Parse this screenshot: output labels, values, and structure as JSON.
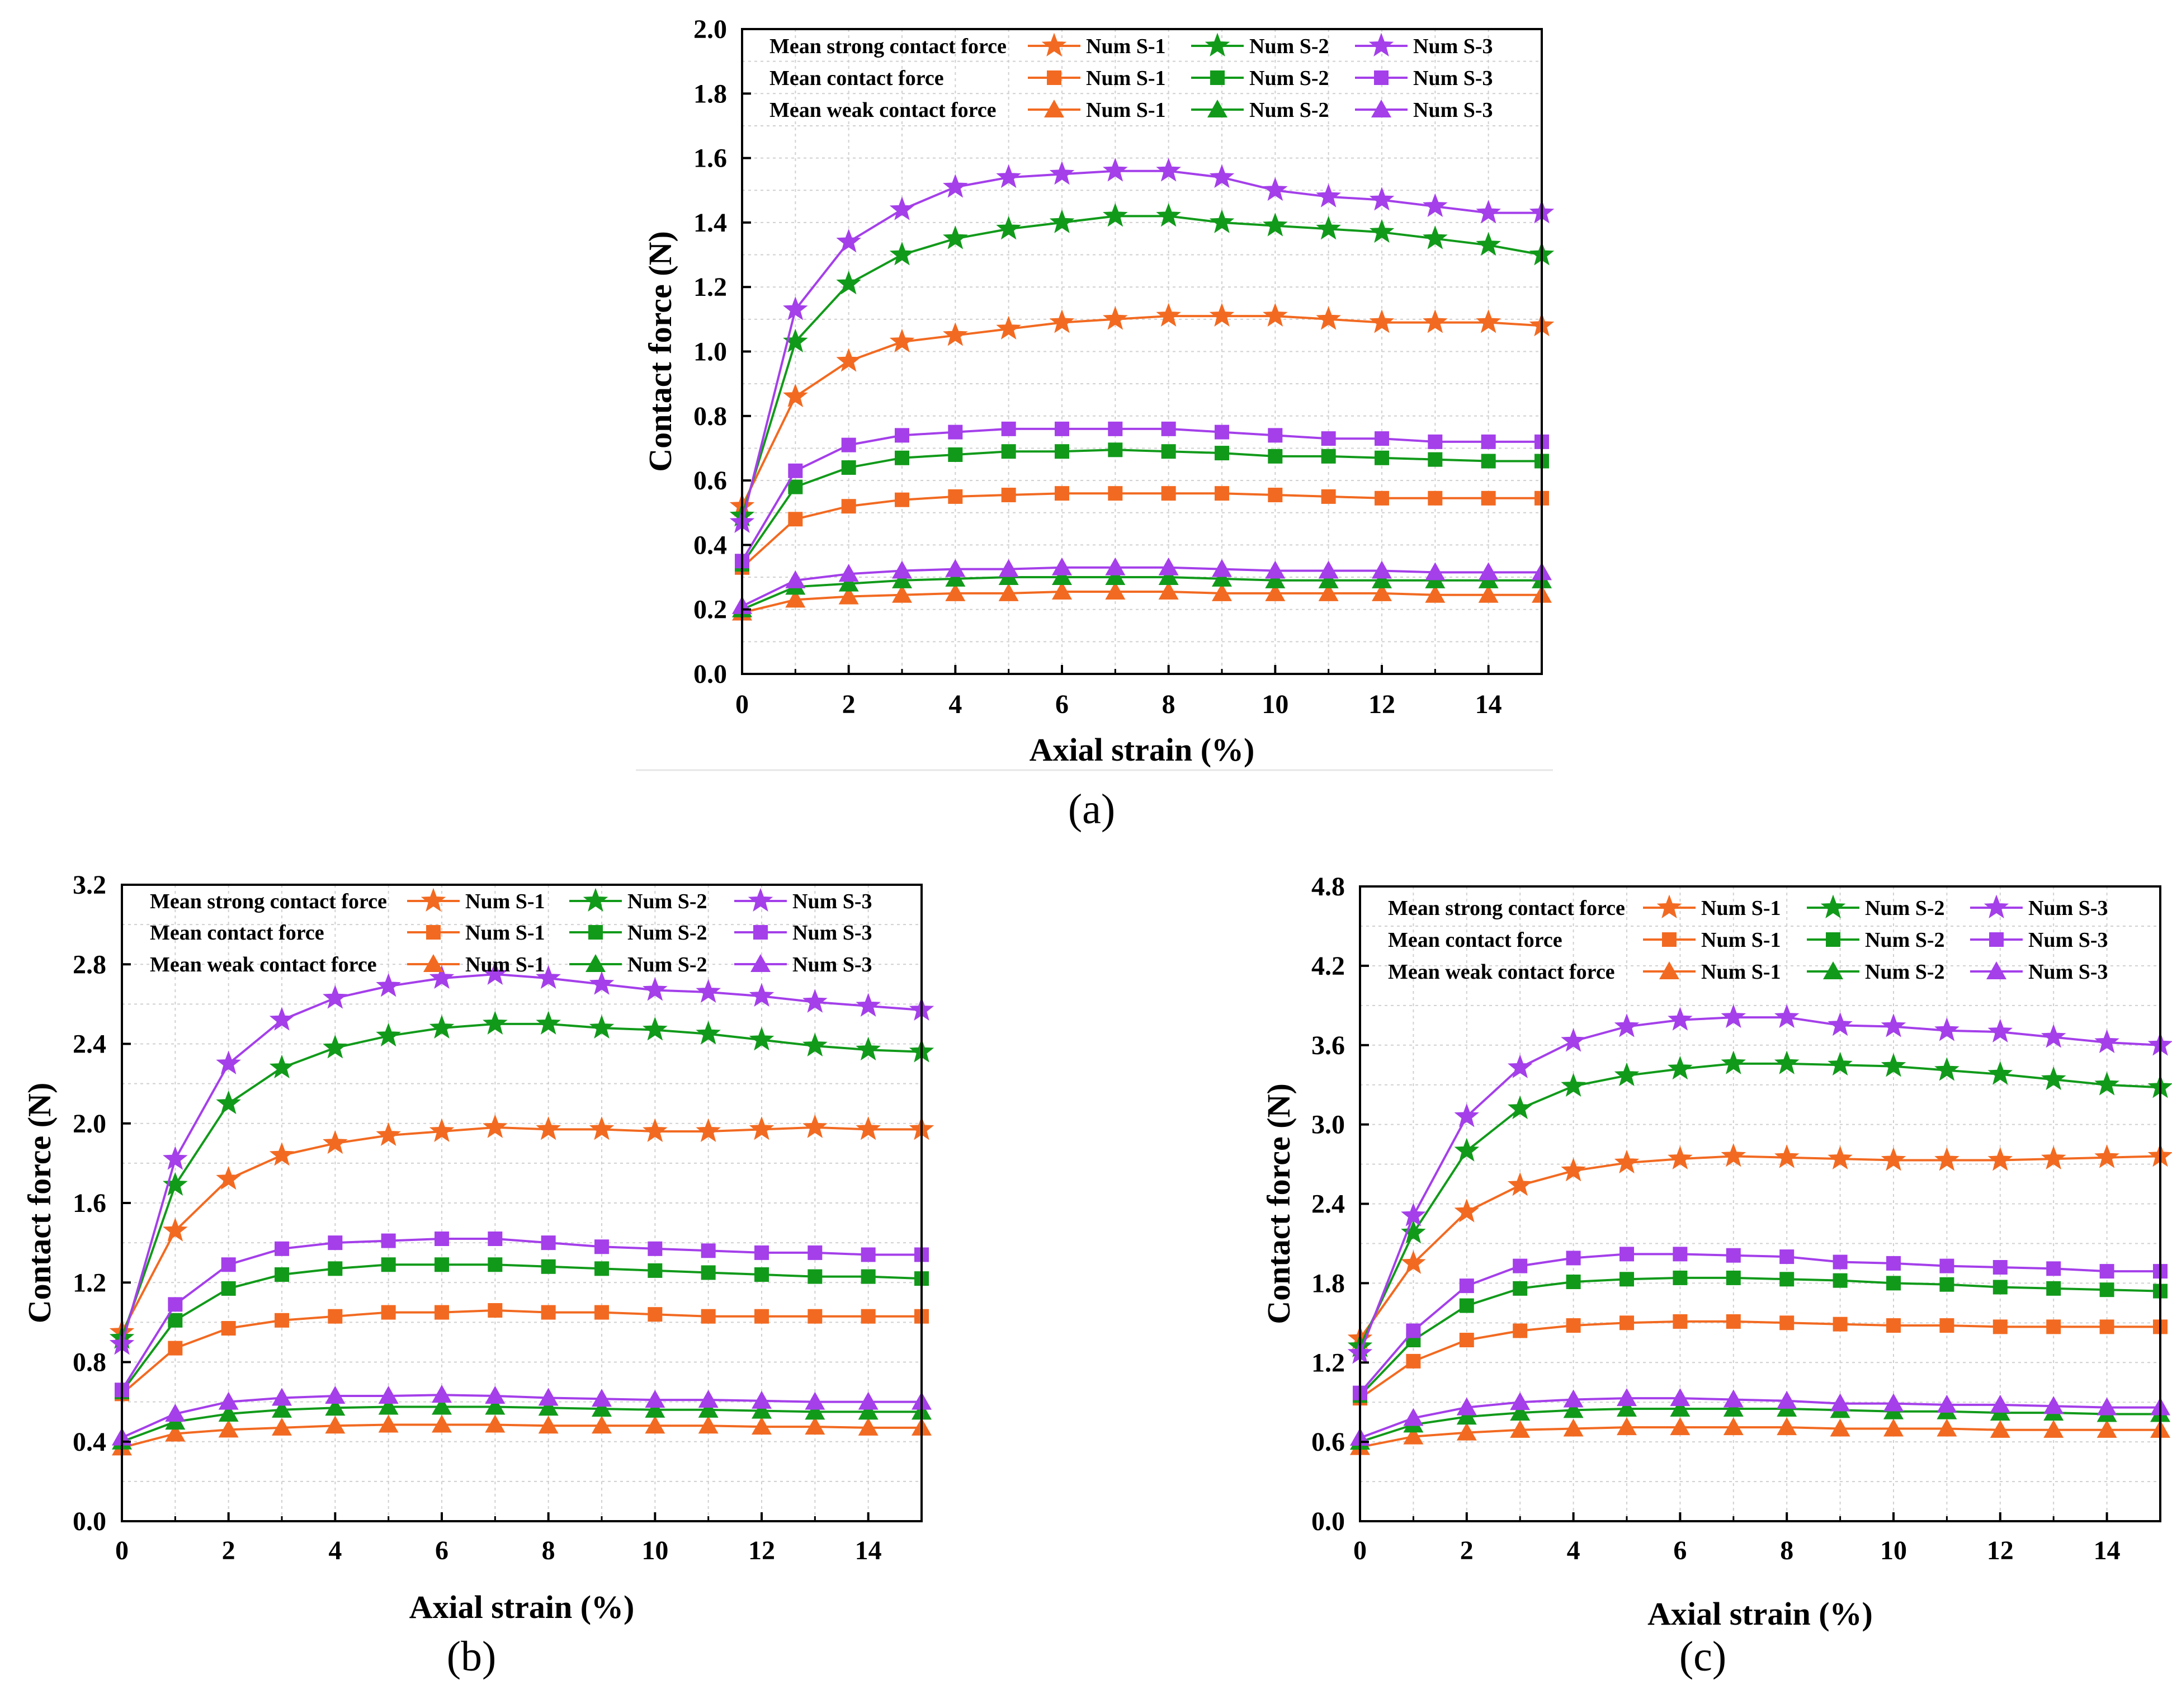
{
  "colors": {
    "S1": "#F26A21",
    "S2": "#119A1A",
    "S3": "#A43FEA",
    "axis": "#000000",
    "grid": "#D0D0D0"
  },
  "legend": {
    "row_labels": [
      "Mean strong contact force",
      "Mean contact force",
      "Mean weak contact force"
    ],
    "series_labels": [
      "Num S-1",
      "Num S-2",
      "Num S-3"
    ],
    "markers": [
      "star",
      "square",
      "triangle"
    ]
  },
  "chart_data": [
    {
      "id": "a",
      "type": "line",
      "caption": "(a)",
      "xlabel": "Axial strain (%)",
      "ylabel": "Contact force (N)",
      "xlim": [
        0,
        15
      ],
      "ylim": [
        0,
        2.0
      ],
      "x_ticks": [
        0,
        2,
        4,
        6,
        8,
        10,
        12,
        14
      ],
      "x_tick_labels": [
        "0",
        "2",
        "4",
        "6",
        "8",
        "10",
        "12",
        "14"
      ],
      "y_ticks": [
        0,
        0.2,
        0.4,
        0.6,
        0.8,
        1.0,
        1.2,
        1.4,
        1.6,
        1.8,
        2.0
      ],
      "y_tick_labels": [
        "0.0",
        "0.2",
        "0.4",
        "0.6",
        "0.8",
        "1.0",
        "1.2",
        "1.4",
        "1.6",
        "1.8",
        "2.0"
      ],
      "grid": true,
      "legend_position": "top",
      "x": [
        0,
        1,
        2,
        3,
        4,
        5,
        6,
        7,
        8,
        9,
        10,
        11,
        12,
        13,
        14,
        15
      ],
      "series": [
        {
          "group": "Mean strong contact force",
          "name": "Num S-1",
          "marker": "star",
          "values": [
            0.52,
            0.86,
            0.97,
            1.03,
            1.05,
            1.07,
            1.09,
            1.1,
            1.11,
            1.11,
            1.11,
            1.1,
            1.09,
            1.09,
            1.09,
            1.08
          ]
        },
        {
          "group": "Mean strong contact force",
          "name": "Num S-2",
          "marker": "star",
          "values": [
            0.49,
            1.03,
            1.21,
            1.3,
            1.35,
            1.38,
            1.4,
            1.42,
            1.42,
            1.4,
            1.39,
            1.38,
            1.37,
            1.35,
            1.33,
            1.3
          ]
        },
        {
          "group": "Mean strong contact force",
          "name": "Num S-3",
          "marker": "star",
          "values": [
            0.47,
            1.13,
            1.34,
            1.44,
            1.51,
            1.54,
            1.55,
            1.56,
            1.56,
            1.54,
            1.5,
            1.48,
            1.47,
            1.45,
            1.43,
            1.43
          ]
        },
        {
          "group": "Mean contact force",
          "name": "Num S-1",
          "marker": "square",
          "values": [
            0.33,
            0.48,
            0.52,
            0.54,
            0.55,
            0.555,
            0.56,
            0.56,
            0.56,
            0.56,
            0.555,
            0.55,
            0.545,
            0.545,
            0.545,
            0.545
          ]
        },
        {
          "group": "Mean contact force",
          "name": "Num S-2",
          "marker": "square",
          "values": [
            0.34,
            0.58,
            0.64,
            0.67,
            0.68,
            0.69,
            0.69,
            0.695,
            0.69,
            0.685,
            0.675,
            0.675,
            0.67,
            0.665,
            0.66,
            0.66
          ]
        },
        {
          "group": "Mean contact force",
          "name": "Num S-3",
          "marker": "square",
          "values": [
            0.35,
            0.63,
            0.71,
            0.74,
            0.75,
            0.76,
            0.76,
            0.76,
            0.76,
            0.75,
            0.74,
            0.73,
            0.73,
            0.72,
            0.72,
            0.72
          ]
        },
        {
          "group": "Mean weak contact force",
          "name": "Num S-1",
          "marker": "triangle",
          "values": [
            0.19,
            0.23,
            0.24,
            0.245,
            0.25,
            0.25,
            0.255,
            0.255,
            0.255,
            0.25,
            0.25,
            0.25,
            0.25,
            0.245,
            0.245,
            0.245
          ]
        },
        {
          "group": "Mean weak contact force",
          "name": "Num S-2",
          "marker": "triangle",
          "values": [
            0.2,
            0.27,
            0.28,
            0.29,
            0.295,
            0.3,
            0.3,
            0.3,
            0.3,
            0.295,
            0.29,
            0.29,
            0.29,
            0.29,
            0.29,
            0.29
          ]
        },
        {
          "group": "Mean weak contact force",
          "name": "Num S-3",
          "marker": "triangle",
          "values": [
            0.21,
            0.29,
            0.31,
            0.32,
            0.325,
            0.325,
            0.33,
            0.33,
            0.33,
            0.325,
            0.32,
            0.32,
            0.32,
            0.315,
            0.315,
            0.315
          ]
        }
      ]
    },
    {
      "id": "b",
      "type": "line",
      "caption": "(b)",
      "xlabel": "Axial strain (%)",
      "ylabel": "Contact force (N)",
      "xlim": [
        0,
        15
      ],
      "ylim": [
        0,
        3.2
      ],
      "x_ticks": [
        0,
        2,
        4,
        6,
        8,
        10,
        12,
        14
      ],
      "x_tick_labels": [
        "0",
        "2",
        "4",
        "6",
        "8",
        "10",
        "12",
        "14"
      ],
      "y_ticks": [
        0,
        0.4,
        0.8,
        1.2,
        1.6,
        2.0,
        2.4,
        2.8,
        3.2
      ],
      "y_tick_labels": [
        "0.0",
        "0.4",
        "0.8",
        "1.2",
        "1.6",
        "2.0",
        "2.4",
        "2.8",
        "3.2"
      ],
      "grid": true,
      "legend_position": "top",
      "x": [
        0,
        1,
        2,
        3,
        4,
        5,
        6,
        7,
        8,
        9,
        10,
        11,
        12,
        13,
        14,
        15
      ],
      "series": [
        {
          "group": "Mean strong contact force",
          "name": "Num S-1",
          "marker": "star",
          "values": [
            0.95,
            1.46,
            1.72,
            1.84,
            1.9,
            1.94,
            1.96,
            1.98,
            1.97,
            1.97,
            1.96,
            1.96,
            1.97,
            1.98,
            1.97,
            1.97
          ]
        },
        {
          "group": "Mean strong contact force",
          "name": "Num S-2",
          "marker": "star",
          "values": [
            0.92,
            1.69,
            2.1,
            2.28,
            2.38,
            2.44,
            2.48,
            2.5,
            2.5,
            2.48,
            2.47,
            2.45,
            2.42,
            2.39,
            2.37,
            2.36
          ]
        },
        {
          "group": "Mean strong contact force",
          "name": "Num S-3",
          "marker": "star",
          "values": [
            0.89,
            1.82,
            2.3,
            2.52,
            2.63,
            2.69,
            2.73,
            2.75,
            2.73,
            2.7,
            2.67,
            2.66,
            2.64,
            2.61,
            2.59,
            2.57
          ]
        },
        {
          "group": "Mean contact force",
          "name": "Num S-1",
          "marker": "square",
          "values": [
            0.64,
            0.87,
            0.97,
            1.01,
            1.03,
            1.05,
            1.05,
            1.06,
            1.05,
            1.05,
            1.04,
            1.03,
            1.03,
            1.03,
            1.03,
            1.03
          ]
        },
        {
          "group": "Mean contact force",
          "name": "Num S-2",
          "marker": "square",
          "values": [
            0.65,
            1.01,
            1.17,
            1.24,
            1.27,
            1.29,
            1.29,
            1.29,
            1.28,
            1.27,
            1.26,
            1.25,
            1.24,
            1.23,
            1.23,
            1.22
          ]
        },
        {
          "group": "Mean contact force",
          "name": "Num S-3",
          "marker": "square",
          "values": [
            0.66,
            1.09,
            1.29,
            1.37,
            1.4,
            1.41,
            1.42,
            1.42,
            1.4,
            1.38,
            1.37,
            1.36,
            1.35,
            1.35,
            1.34,
            1.34
          ]
        },
        {
          "group": "Mean weak contact force",
          "name": "Num S-1",
          "marker": "triangle",
          "values": [
            0.37,
            0.44,
            0.46,
            0.47,
            0.48,
            0.485,
            0.485,
            0.485,
            0.48,
            0.48,
            0.48,
            0.48,
            0.475,
            0.475,
            0.47,
            0.47
          ]
        },
        {
          "group": "Mean weak contact force",
          "name": "Num S-2",
          "marker": "triangle",
          "values": [
            0.4,
            0.5,
            0.54,
            0.56,
            0.57,
            0.575,
            0.575,
            0.575,
            0.57,
            0.565,
            0.56,
            0.56,
            0.555,
            0.55,
            0.55,
            0.55
          ]
        },
        {
          "group": "Mean weak contact force",
          "name": "Num S-3",
          "marker": "triangle",
          "values": [
            0.42,
            0.54,
            0.6,
            0.62,
            0.63,
            0.63,
            0.635,
            0.63,
            0.62,
            0.615,
            0.61,
            0.61,
            0.605,
            0.6,
            0.6,
            0.6
          ]
        }
      ]
    },
    {
      "id": "c",
      "type": "line",
      "caption": "(c)",
      "xlabel": "Axial strain (%)",
      "ylabel": "Contact force (N)",
      "xlim": [
        0,
        15
      ],
      "ylim": [
        0,
        4.8
      ],
      "x_ticks": [
        0,
        2,
        4,
        6,
        8,
        10,
        12,
        14
      ],
      "x_tick_labels": [
        "0",
        "2",
        "4",
        "6",
        "8",
        "10",
        "12",
        "14"
      ],
      "y_ticks": [
        0,
        0.6,
        1.2,
        1.8,
        2.4,
        3.0,
        3.6,
        4.2,
        4.8
      ],
      "y_tick_labels": [
        "0.0",
        "0.6",
        "1.2",
        "1.8",
        "2.4",
        "3.0",
        "3.6",
        "4.2",
        "4.8"
      ],
      "grid": true,
      "legend_position": "top",
      "x": [
        0,
        1,
        2,
        3,
        4,
        5,
        6,
        7,
        8,
        9,
        10,
        11,
        12,
        13,
        14,
        15
      ],
      "series": [
        {
          "group": "Mean strong contact force",
          "name": "Num S-1",
          "marker": "star",
          "values": [
            1.38,
            1.95,
            2.34,
            2.54,
            2.65,
            2.71,
            2.74,
            2.76,
            2.75,
            2.74,
            2.73,
            2.73,
            2.73,
            2.74,
            2.75,
            2.76
          ]
        },
        {
          "group": "Mean strong contact force",
          "name": "Num S-2",
          "marker": "star",
          "values": [
            1.32,
            2.18,
            2.8,
            3.12,
            3.29,
            3.37,
            3.42,
            3.46,
            3.46,
            3.45,
            3.44,
            3.41,
            3.38,
            3.34,
            3.3,
            3.28
          ]
        },
        {
          "group": "Mean strong contact force",
          "name": "Num S-3",
          "marker": "star",
          "values": [
            1.27,
            2.31,
            3.06,
            3.43,
            3.63,
            3.74,
            3.79,
            3.81,
            3.81,
            3.75,
            3.74,
            3.71,
            3.7,
            3.66,
            3.62,
            3.6
          ]
        },
        {
          "group": "Mean contact force",
          "name": "Num S-1",
          "marker": "square",
          "values": [
            0.93,
            1.21,
            1.37,
            1.44,
            1.48,
            1.5,
            1.51,
            1.51,
            1.5,
            1.49,
            1.48,
            1.48,
            1.47,
            1.47,
            1.47,
            1.47
          ]
        },
        {
          "group": "Mean contact force",
          "name": "Num S-2",
          "marker": "square",
          "values": [
            0.95,
            1.37,
            1.63,
            1.76,
            1.81,
            1.83,
            1.84,
            1.84,
            1.83,
            1.82,
            1.8,
            1.79,
            1.77,
            1.76,
            1.75,
            1.74
          ]
        },
        {
          "group": "Mean contact force",
          "name": "Num S-3",
          "marker": "square",
          "values": [
            0.97,
            1.44,
            1.78,
            1.93,
            1.99,
            2.02,
            2.02,
            2.01,
            2.0,
            1.96,
            1.95,
            1.93,
            1.92,
            1.91,
            1.89,
            1.89
          ]
        },
        {
          "group": "Mean weak contact force",
          "name": "Num S-1",
          "marker": "triangle",
          "values": [
            0.56,
            0.64,
            0.67,
            0.69,
            0.7,
            0.71,
            0.71,
            0.71,
            0.71,
            0.7,
            0.7,
            0.7,
            0.69,
            0.69,
            0.69,
            0.69
          ]
        },
        {
          "group": "Mean weak contact force",
          "name": "Num S-2",
          "marker": "triangle",
          "values": [
            0.6,
            0.73,
            0.79,
            0.82,
            0.84,
            0.85,
            0.85,
            0.85,
            0.85,
            0.84,
            0.83,
            0.83,
            0.82,
            0.82,
            0.81,
            0.81
          ]
        },
        {
          "group": "Mean weak contact force",
          "name": "Num S-3",
          "marker": "triangle",
          "values": [
            0.63,
            0.78,
            0.86,
            0.9,
            0.92,
            0.93,
            0.93,
            0.92,
            0.91,
            0.89,
            0.89,
            0.88,
            0.88,
            0.87,
            0.86,
            0.86
          ]
        }
      ]
    }
  ]
}
